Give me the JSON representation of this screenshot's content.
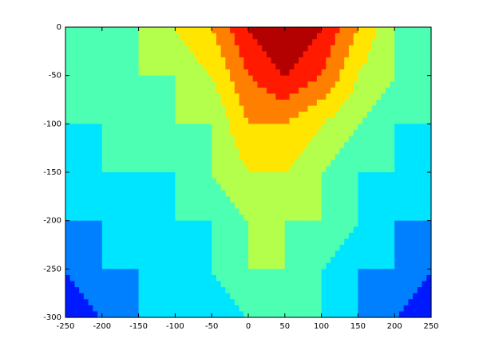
{
  "chart_data": {
    "type": "contour",
    "colormap": "jet",
    "zlim": [
      0,
      10
    ],
    "x": [
      -250,
      -200,
      -150,
      -100,
      -50,
      0,
      50,
      100,
      150,
      200,
      250
    ],
    "y": [
      0,
      -50,
      -100,
      -150,
      -200,
      -250,
      -300
    ],
    "z": [
      [
        4,
        4,
        5,
        6,
        7,
        9,
        10,
        9,
        7,
        5,
        4
      ],
      [
        4,
        4,
        5,
        5,
        6,
        8,
        9,
        8,
        6,
        5,
        4
      ],
      [
        4,
        4,
        4,
        5,
        5,
        7,
        7,
        6,
        5,
        4,
        4
      ],
      [
        3,
        4,
        4,
        4,
        5,
        6,
        6,
        5,
        4,
        4,
        3
      ],
      [
        3,
        3,
        3,
        4,
        4,
        5,
        5,
        5,
        4,
        3,
        3
      ],
      [
        2,
        3,
        3,
        3,
        4,
        5,
        5,
        4,
        3,
        3,
        2
      ],
      [
        1,
        2,
        3,
        3,
        3,
        4,
        4,
        4,
        3,
        2,
        1
      ]
    ],
    "xlim": [
      -250,
      250
    ],
    "ylim": [
      -300,
      0
    ],
    "xticks": [
      -250,
      -200,
      -150,
      -100,
      -50,
      0,
      50,
      100,
      150,
      200,
      250
    ],
    "yticks": [
      -300,
      -250,
      -200,
      -150,
      -100,
      -50,
      0
    ]
  }
}
